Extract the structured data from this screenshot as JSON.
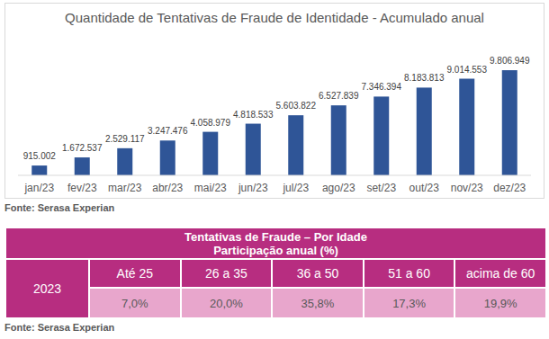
{
  "chart_data": {
    "type": "bar",
    "title": "Quantidade de Tentativas de Fraude de Identidade - Acumulado anual",
    "categories": [
      "jan/23",
      "fev/23",
      "mar/23",
      "abr/23",
      "mai/23",
      "jun/23",
      "jul/23",
      "ago/23",
      "set/23",
      "out/23",
      "nov/23",
      "dez/23"
    ],
    "values": [
      915002,
      1672537,
      2529117,
      3247476,
      4058979,
      4818533,
      5603822,
      6527839,
      7346394,
      8183813,
      9014553,
      9806949
    ],
    "value_labels": [
      "915.002",
      "1.672.537",
      "2.529.117",
      "3.247.476",
      "4.058.979",
      "4.818.533",
      "5.603.822",
      "6.527.839",
      "7.346.394",
      "8.183.813",
      "9.014.553",
      "9.806.949"
    ],
    "color": "#2f5597",
    "ylim": [
      0,
      13000000
    ],
    "data_labels": true,
    "tick_labels": "x",
    "grid": false
  },
  "chart_source": "Fonte: Serasa Experian",
  "table": {
    "title": [
      "Tentativas de Fraude – Por Idade",
      "Participação anual (%)"
    ],
    "row_header": "2023",
    "columns": [
      "Até 25",
      "26 a 35",
      "36 a 50",
      "51 a 60",
      "acima de 60"
    ],
    "rows": [
      [
        "7,0%",
        "20,0%",
        "35,8%",
        "17,3%",
        "19,9%"
      ]
    ],
    "source": "Fonte: Serasa Experian"
  }
}
